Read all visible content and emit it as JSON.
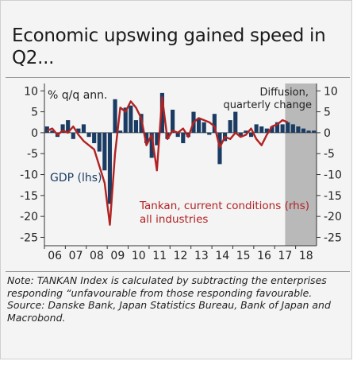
{
  "title": "Economic upswing gained speed in Q2...",
  "note": "Note: TANKAN Index is calculated by subtracting the enterprises responding “unfavourable from those responding favourable.",
  "source": "Source: Danske Bank, Japan Statistics Bureau, Bank of Japan and Macrobond.",
  "chart_data": {
    "type": "bar",
    "title": "Economic upswing gained speed in Q2...",
    "ylim": [
      -27,
      11
    ],
    "yticks": [
      10,
      5,
      0,
      -5,
      -10,
      -15,
      -20,
      -25
    ],
    "ytick_labels_lhs": [
      "10",
      "5",
      "0",
      "-5",
      "-10",
      "-15",
      "-20",
      "-25"
    ],
    "ytick_labels_rhs": [
      "10",
      "5",
      "0",
      "-5",
      "-10",
      "-15",
      "-20",
      "-25"
    ],
    "ylabel_lhs": "% q/q ann.",
    "x_labels": [
      "06",
      "07",
      "08",
      "09",
      "10",
      "11",
      "12",
      "13",
      "14",
      "15",
      "16",
      "17",
      "18"
    ],
    "shaded_region_label": "Diffusion, quarterly change",
    "shaded_region_start": "2017Q3",
    "annotations": [
      {
        "text": "GDP (lhs)",
        "color": "#1a3c63"
      },
      {
        "text": "Tankan, current conditions (rhs)",
        "color": "#b22222"
      },
      {
        "text": "all industries",
        "color": "#b22222"
      }
    ],
    "quarters": [
      "2006Q1",
      "2006Q2",
      "2006Q3",
      "2006Q4",
      "2007Q1",
      "2007Q2",
      "2007Q3",
      "2007Q4",
      "2008Q1",
      "2008Q2",
      "2008Q3",
      "2008Q4",
      "2009Q1",
      "2009Q2",
      "2009Q3",
      "2009Q4",
      "2010Q1",
      "2010Q2",
      "2010Q3",
      "2010Q4",
      "2011Q1",
      "2011Q2",
      "2011Q3",
      "2011Q4",
      "2012Q1",
      "2012Q2",
      "2012Q3",
      "2012Q4",
      "2013Q1",
      "2013Q2",
      "2013Q3",
      "2013Q4",
      "2014Q1",
      "2014Q2",
      "2014Q3",
      "2014Q4",
      "2015Q1",
      "2015Q2",
      "2015Q3",
      "2015Q4",
      "2016Q1",
      "2016Q2",
      "2016Q3",
      "2016Q4",
      "2017Q1",
      "2017Q2",
      "2017Q3",
      "2017Q4",
      "2018Q1",
      "2018Q2",
      "2018Q3",
      "2018Q4"
    ],
    "series": [
      {
        "name": "GDP (lhs)",
        "kind": "bar",
        "color": "#1a3c63",
        "values": [
          1.5,
          0.5,
          -1.0,
          2.0,
          3.0,
          -1.5,
          1.0,
          2.0,
          -1.0,
          -2.5,
          -4.5,
          -9.0,
          -17.0,
          8.0,
          0.5,
          6.0,
          6.5,
          3.0,
          4.5,
          -2.5,
          -6.0,
          -3.0,
          9.5,
          -1.5,
          5.5,
          -1.0,
          -2.5,
          -1.0,
          5.0,
          3.5,
          2.5,
          -0.5,
          4.5,
          -7.5,
          -2.0,
          3.0,
          5.0,
          -1.0,
          0.5,
          -1.0,
          2.0,
          1.5,
          1.0,
          1.5,
          2.5,
          2.0,
          2.5,
          2.0,
          1.5,
          1.0,
          0.5,
          0.5
        ]
      },
      {
        "name": "Tankan, current conditions (rhs)",
        "kind": "line",
        "color": "#b22222",
        "values": [
          0.5,
          1.0,
          -0.5,
          0.5,
          0.0,
          1.5,
          -0.5,
          -2.0,
          -3.0,
          -4.0,
          -8.0,
          -12.0,
          -22.0,
          -5.0,
          6.0,
          5.0,
          7.5,
          6.0,
          3.5,
          -3.0,
          -0.5,
          -9.0,
          8.5,
          -1.5,
          0.5,
          0.0,
          1.0,
          -1.0,
          2.5,
          3.5,
          3.0,
          2.5,
          1.5,
          -3.5,
          -1.0,
          -1.5,
          0.0,
          -1.0,
          -0.5,
          1.0,
          -1.5,
          -3.0,
          -0.5,
          1.5,
          2.0,
          3.0,
          2.5
        ]
      }
    ]
  }
}
